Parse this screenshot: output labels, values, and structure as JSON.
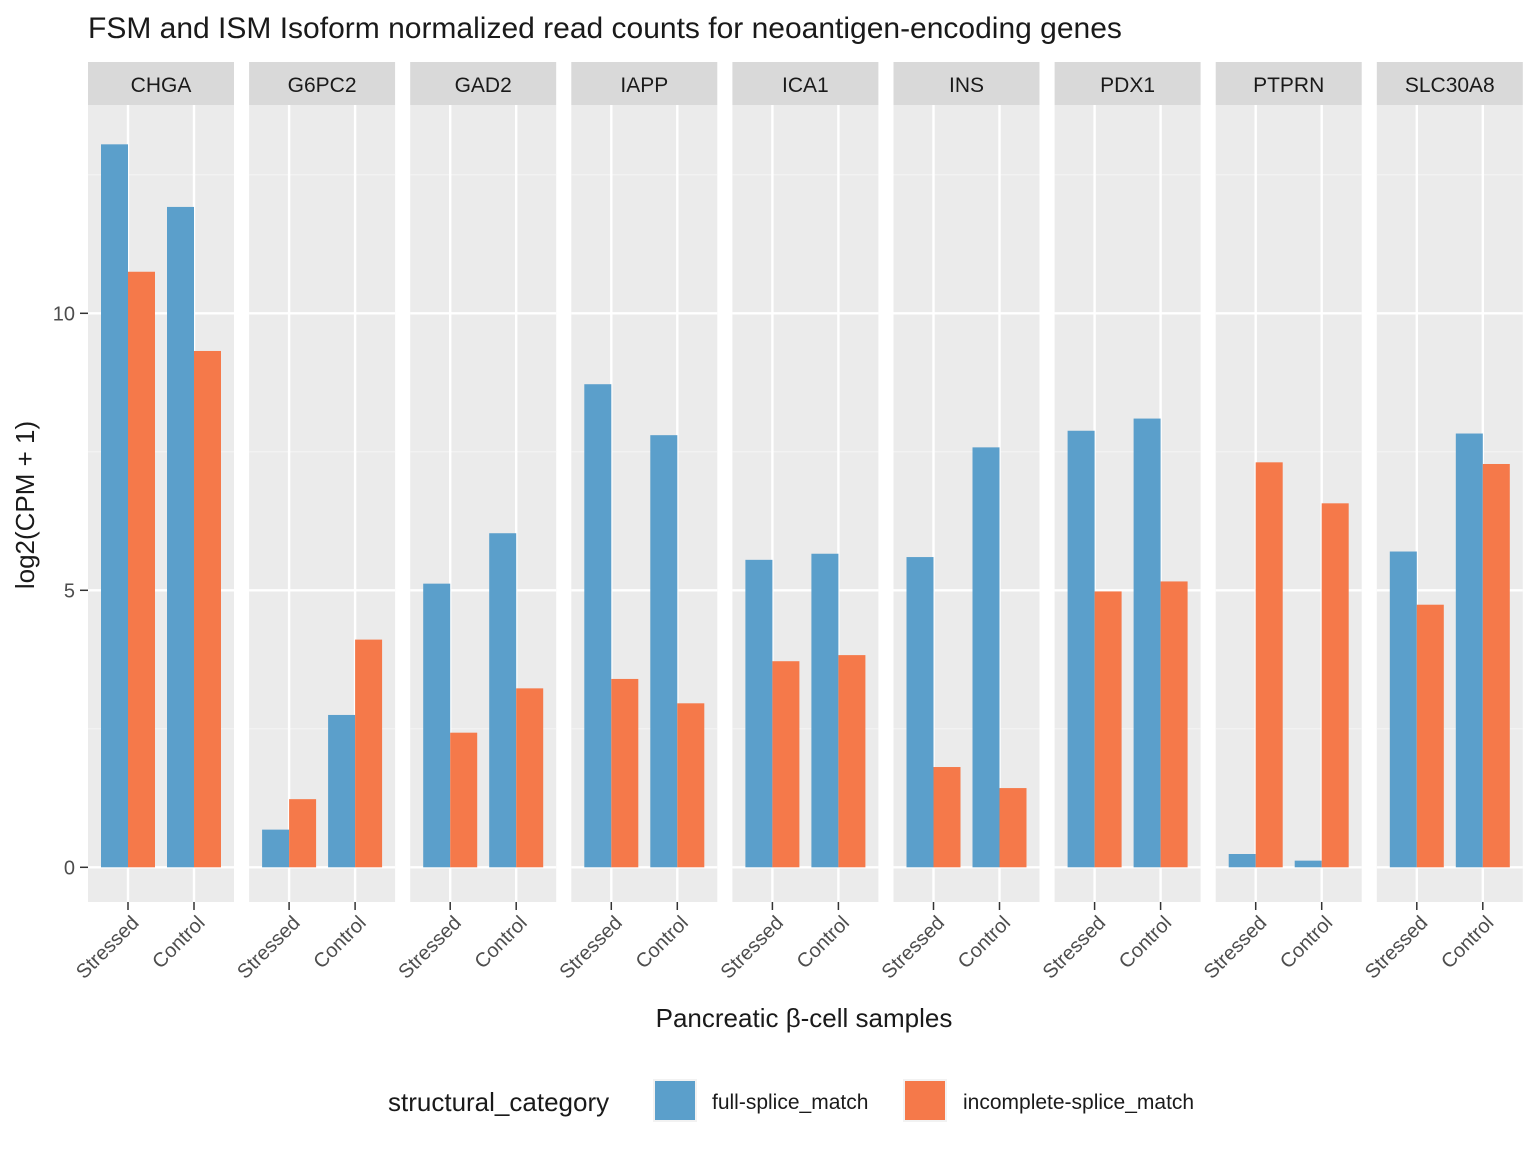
{
  "chart_data": {
    "type": "bar",
    "title": "FSM and ISM Isoform normalized read counts for neoantigen-encoding genes",
    "xlabel": "Pancreatic β-cell samples",
    "ylabel": "log2(CPM + 1)",
    "ylim": [
      -0.6,
      13.8
    ],
    "yticks": [
      0,
      5,
      10
    ],
    "grid": true,
    "legend_position": "bottom",
    "legend_title": "structural_category",
    "categories": [
      "Stressed",
      "Control"
    ],
    "facets": [
      "CHGA",
      "G6PC2",
      "GAD2",
      "IAPP",
      "ICA1",
      "INS",
      "PDX1",
      "PTPRN",
      "SLC30A8"
    ],
    "series": [
      {
        "name": "full-splice_match",
        "color": "#5B9FCB",
        "values": {
          "CHGA": [
            13.05,
            11.92
          ],
          "G6PC2": [
            0.68,
            2.75
          ],
          "GAD2": [
            5.12,
            6.03
          ],
          "IAPP": [
            8.72,
            7.8
          ],
          "ICA1": [
            5.55,
            5.66
          ],
          "INS": [
            5.6,
            7.58
          ],
          "PDX1": [
            7.88,
            8.1
          ],
          "PTPRN": [
            0.24,
            0.12
          ],
          "SLC30A8": [
            5.7,
            7.83
          ]
        }
      },
      {
        "name": "incomplete-splice_match",
        "color": "#F5794A",
        "values": {
          "CHGA": [
            10.75,
            9.32
          ],
          "G6PC2": [
            1.23,
            4.11
          ],
          "GAD2": [
            2.43,
            3.23
          ],
          "IAPP": [
            3.4,
            2.96
          ],
          "ICA1": [
            3.72,
            3.83
          ],
          "INS": [
            1.81,
            1.43
          ],
          "PDX1": [
            4.98,
            5.16
          ],
          "PTPRN": [
            7.31,
            6.57
          ],
          "SLC30A8": [
            4.74,
            7.28
          ]
        }
      }
    ]
  }
}
